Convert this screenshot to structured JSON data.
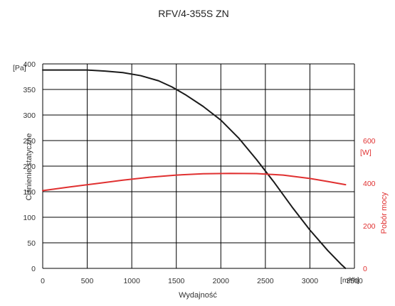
{
  "chart_data": {
    "type": "line",
    "title": "RFV/4-355S ZN",
    "xlabel": "Wydajność",
    "x_unit": "[m³/h]",
    "ylabel": "Ciśnienie statyczne",
    "y_unit": "[Pa]",
    "y2label": "Pobór mocy",
    "y2_unit": "[W]",
    "xlim": [
      0,
      3500
    ],
    "ylim": [
      0,
      400
    ],
    "y2lim": [
      0,
      600
    ],
    "x_ticks": [
      0,
      500,
      1000,
      1500,
      2000,
      2500,
      3000,
      3500
    ],
    "y_ticks": [
      0,
      50,
      100,
      150,
      200,
      250,
      300,
      350,
      400
    ],
    "y2_ticks": [
      0,
      200,
      400,
      600
    ],
    "grid": true,
    "series": [
      {
        "axis": "left",
        "color": "#1a1a1a",
        "x": [
          0,
          250,
          500,
          700,
          900,
          1100,
          1300,
          1450,
          1600,
          1800,
          2000,
          2200,
          2400,
          2600,
          2800,
          3000,
          3200,
          3350,
          3400
        ],
        "values": [
          388,
          388,
          388,
          386,
          383,
          377,
          367,
          355,
          340,
          317,
          290,
          255,
          213,
          168,
          120,
          75,
          35,
          8,
          0
        ]
      },
      {
        "axis": "right",
        "color": "#e03030",
        "x": [
          0,
          300,
          600,
          900,
          1200,
          1500,
          1800,
          2100,
          2400,
          2700,
          3000,
          3200,
          3400
        ],
        "values": [
          365,
          382,
          398,
          414,
          428,
          438,
          444,
          446,
          445,
          438,
          422,
          408,
          393
        ]
      }
    ]
  }
}
